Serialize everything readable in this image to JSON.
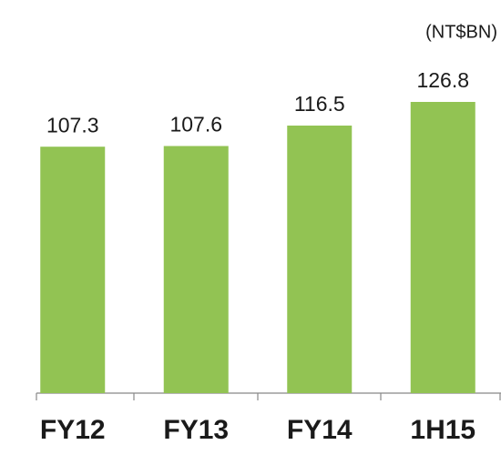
{
  "chart_data": {
    "type": "bar",
    "unit_label": "(NT$BN)",
    "categories": [
      "FY12",
      "FY13",
      "FY14",
      "1H15"
    ],
    "values": [
      107.3,
      107.6,
      116.5,
      126.8
    ],
    "color": "#92c353"
  }
}
